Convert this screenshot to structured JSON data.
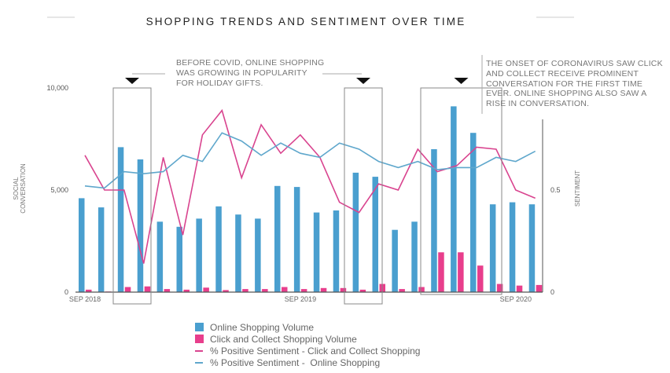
{
  "title": "SHOPPING TRENDS AND SENTIMENT OVER TIME",
  "annotations": [
    "BEFORE COVID, ONLINE SHOPPING WAS GROWING IN POPULARITY FOR HOLIDAY GIFTS.",
    "THE ONSET OF CORONAVIRUS SAW CLICK AND COLLECT RECEIVE PROMINENT CONVERSATION FOR THE FIRST TIME EVER. ONLINE SHOPPING ALSO SAW A RISE IN CONVERSATION."
  ],
  "colors": {
    "online": "#4a9fcf",
    "click": "#e83e8c",
    "click_line": "#d9448f",
    "online_line": "#5fa7cc"
  },
  "chart_data": {
    "type": "bar+line",
    "title": "SHOPPING TRENDS AND SENTIMENT OVER TIME",
    "x_tick_labels": [
      {
        "index": 0,
        "label": "SEP 2018"
      },
      {
        "index": 11,
        "label": "SEP 2019"
      },
      {
        "index": 22,
        "label": "SEP 2020"
      }
    ],
    "ylabel_left": [
      "SOCIAL",
      "CONVERSATION"
    ],
    "ylabel_right": "SENTIMENT",
    "ylim_left": [
      0,
      10000
    ],
    "ylim_right": [
      0,
      1
    ],
    "left_ticks": [
      {
        "value": 10000,
        "label": "10,000"
      },
      {
        "value": 5000,
        "label": "5,000"
      },
      {
        "value": 0,
        "label": "0"
      }
    ],
    "right_ticks": [
      {
        "value": 0.5,
        "label": "0.5"
      },
      {
        "value": 0,
        "label": "0"
      }
    ],
    "grid": false,
    "legend_placement": "bottom",
    "series": [
      {
        "name": "Online Shopping Volume",
        "type": "bar",
        "axis": "left",
        "values": [
          4600,
          4150,
          7100,
          6500,
          3450,
          3200,
          3600,
          4200,
          3800,
          3600,
          5200,
          5150,
          3900,
          4000,
          5850,
          5650,
          3050,
          3450,
          7000,
          9100,
          7800,
          4300,
          4400,
          4300
        ]
      },
      {
        "name": "Click and Collect Shopping Volume",
        "type": "bar",
        "axis": "left",
        "values": [
          120,
          30,
          250,
          280,
          150,
          120,
          220,
          100,
          150,
          150,
          250,
          150,
          200,
          200,
          120,
          400,
          150,
          250,
          1950,
          1950,
          1300,
          400,
          320,
          350
        ]
      },
      {
        "name": "% Positive Sentiment - Click and Collect Shopping",
        "type": "line",
        "axis": "right",
        "values": [
          0.67,
          0.5,
          0.5,
          0.14,
          0.66,
          0.28,
          0.77,
          0.89,
          0.56,
          0.82,
          0.68,
          0.77,
          0.66,
          0.44,
          0.39,
          0.53,
          0.5,
          0.7,
          0.59,
          0.62,
          0.71,
          0.7,
          0.5,
          0.46
        ]
      },
      {
        "name": "% Positive Sentiment -  Online Shopping",
        "type": "line",
        "axis": "right",
        "values": [
          0.52,
          0.51,
          0.59,
          0.58,
          0.59,
          0.67,
          0.64,
          0.78,
          0.74,
          0.67,
          0.73,
          0.68,
          0.66,
          0.73,
          0.7,
          0.64,
          0.61,
          0.64,
          0.6,
          0.61,
          0.61,
          0.66,
          0.64,
          0.69
        ]
      }
    ],
    "highlight_ranges": [
      [
        2,
        3
      ],
      [
        14,
        15
      ],
      [
        18,
        21
      ]
    ]
  }
}
